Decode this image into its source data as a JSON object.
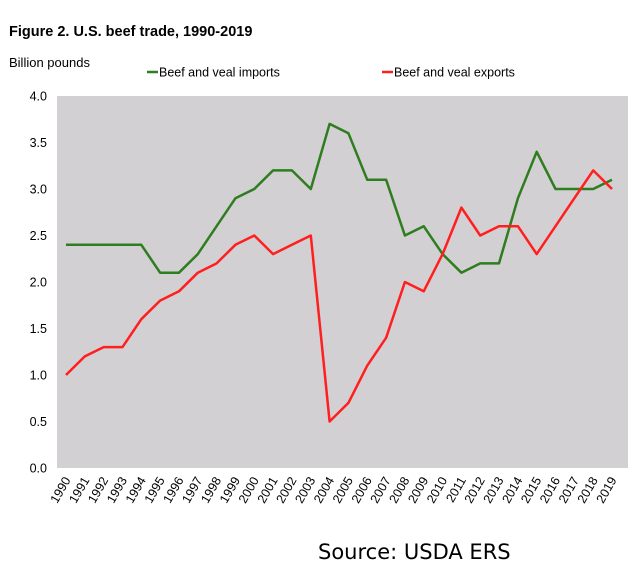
{
  "title": "Figure 2. U.S. beef trade, 1990-2019",
  "source": "Source: USDA ERS",
  "chart_data": {
    "type": "line",
    "ylabel": "Billion pounds",
    "ylim": [
      0,
      4
    ],
    "yticks": [
      "0.0",
      "0.5",
      "1.0",
      "1.5",
      "2.0",
      "2.5",
      "3.0",
      "3.5",
      "4.0"
    ],
    "x": [
      "1990",
      "1991",
      "1992",
      "1993",
      "1994",
      "1995",
      "1996",
      "1997",
      "1998",
      "1999",
      "2000",
      "2001",
      "2002",
      "2003",
      "2004",
      "2005",
      "2006",
      "2007",
      "2008",
      "2009",
      "2010",
      "2011",
      "2012",
      "2013",
      "2014",
      "2015",
      "2016",
      "2017",
      "2018",
      "2019"
    ],
    "legend_position": "top",
    "grid": false,
    "series": [
      {
        "name": "Beef and veal imports",
        "color": "#2e7d1f",
        "values": [
          2.4,
          2.4,
          2.4,
          2.4,
          2.4,
          2.1,
          2.1,
          2.3,
          2.6,
          2.9,
          3.0,
          3.2,
          3.2,
          3.0,
          3.7,
          3.6,
          3.1,
          3.1,
          2.5,
          2.6,
          2.3,
          2.1,
          2.2,
          2.2,
          2.9,
          3.4,
          3.0,
          3.0,
          3.0,
          3.1
        ]
      },
      {
        "name": "Beef and veal exports",
        "color": "#ff1f1f",
        "values": [
          1.0,
          1.2,
          1.3,
          1.3,
          1.6,
          1.8,
          1.9,
          2.1,
          2.2,
          2.4,
          2.5,
          2.3,
          2.4,
          2.5,
          0.5,
          0.7,
          1.1,
          1.4,
          2.0,
          1.9,
          2.3,
          2.8,
          2.5,
          2.6,
          2.6,
          2.3,
          2.6,
          2.9,
          3.2,
          3.0
        ]
      }
    ]
  }
}
